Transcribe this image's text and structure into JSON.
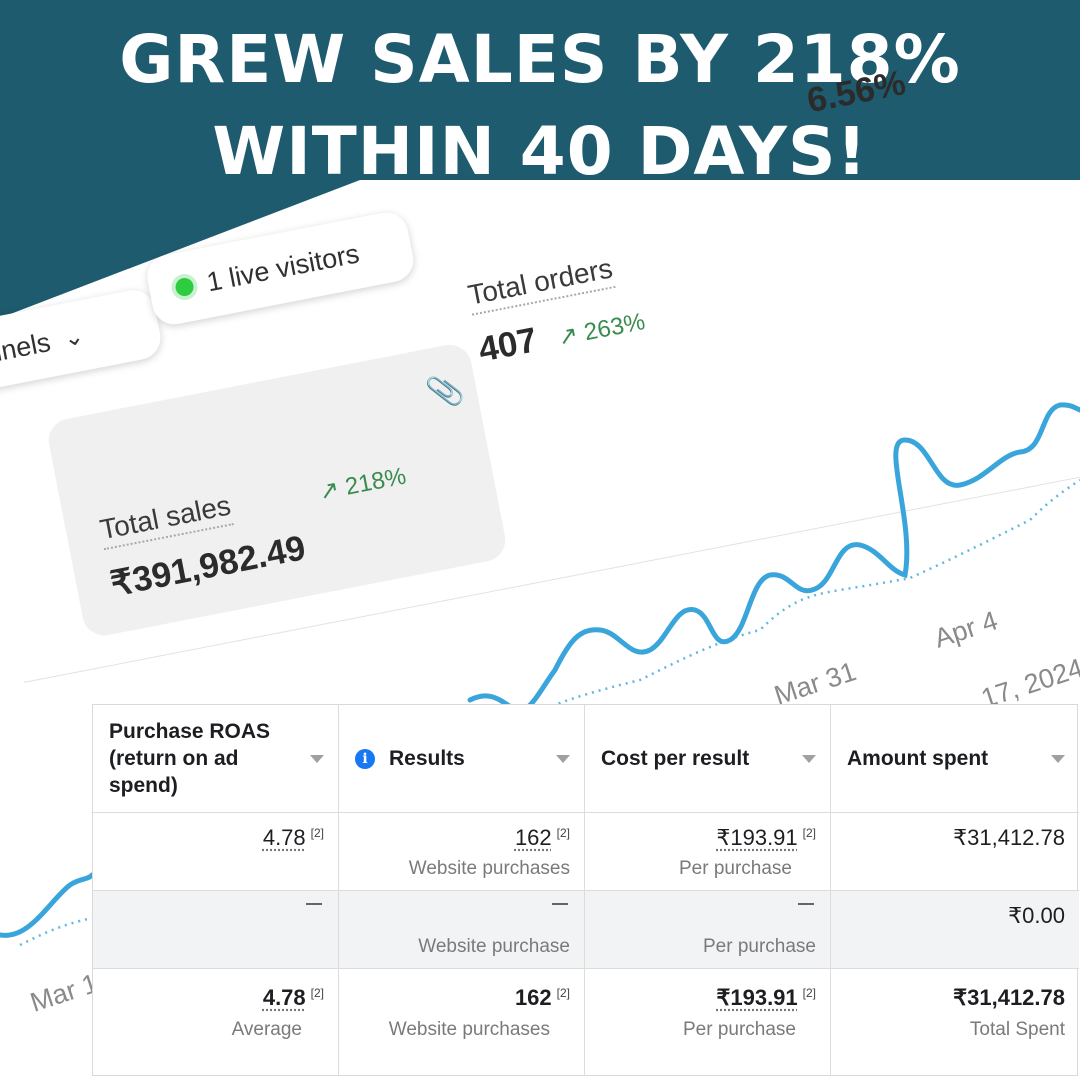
{
  "banner": {
    "line1": "GREW SALES BY 218%",
    "line2": "WITHIN 40 DAYS!"
  },
  "colors": {
    "teal": "#1e5b6e",
    "line": "#3aa5db",
    "positive": "#3a8b4f",
    "live_dot": "#2ecc40",
    "info": "#1877f2"
  },
  "dashboard": {
    "channels_label": "nnels",
    "live_visitors": "1 live visitors",
    "conversion_value": "6.56%",
    "total_orders": {
      "label": "Total orders",
      "value": "407",
      "change": "263%"
    },
    "total_sales": {
      "label": "Total sales",
      "value": "₹391,982.49",
      "change": "218%"
    },
    "axis": {
      "mar31": "Mar 31",
      "apr4": "Apr 4",
      "year": "17, 2024",
      "mar": "Mar 1"
    },
    "icons": [
      "chevron-down-icon",
      "paperclip-icon",
      "arrow-up-right-icon",
      "live-dot-icon"
    ]
  },
  "table": {
    "headers": {
      "roas": "Purchase ROAS (return on ad spend)",
      "results": "Results",
      "cpr": "Cost per result",
      "spent": "Amount spent"
    },
    "row1": {
      "roas": "4.78",
      "roas_fn": "[2]",
      "results": "162",
      "results_fn": "[2]",
      "results_sub": "Website purchases",
      "cpr": "₹193.91",
      "cpr_fn": "[2]",
      "cpr_sub": "Per purchase",
      "spent": "₹31,412.78"
    },
    "row2": {
      "results_sub": "Website purchase",
      "cpr_sub": "Per purchase",
      "spent": "₹0.00"
    },
    "total": {
      "roas": "4.78",
      "roas_fn": "[2]",
      "roas_sub": "Average",
      "results": "162",
      "results_fn": "[2]",
      "results_sub": "Website purchases",
      "cpr": "₹193.91",
      "cpr_fn": "[2]",
      "cpr_sub": "Per purchase",
      "spent": "₹31,412.78",
      "spent_sub": "Total Spent"
    }
  }
}
